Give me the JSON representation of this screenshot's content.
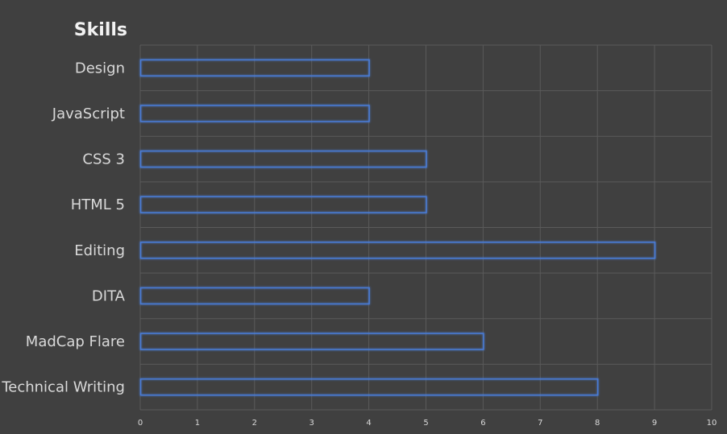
{
  "chart_data": {
    "type": "bar",
    "orientation": "horizontal",
    "title": "Skills",
    "categories": [
      "Design",
      "JavaScript",
      "CSS 3",
      "HTML 5",
      "Editing",
      "DITA",
      "MadCap Flare",
      "Technical Writing"
    ],
    "values": [
      4,
      4,
      5,
      5,
      9,
      4,
      6,
      8
    ],
    "xlim": [
      0,
      10
    ],
    "xticks": [
      "0",
      "1",
      "2",
      "3",
      "4",
      "5",
      "6",
      "7",
      "8",
      "9",
      "10"
    ],
    "grid": true,
    "colors": {
      "background": "#404040",
      "bar_outline": "#4a7bd6",
      "grid": "#5a5a5a",
      "text": "#d9d9d9"
    }
  }
}
